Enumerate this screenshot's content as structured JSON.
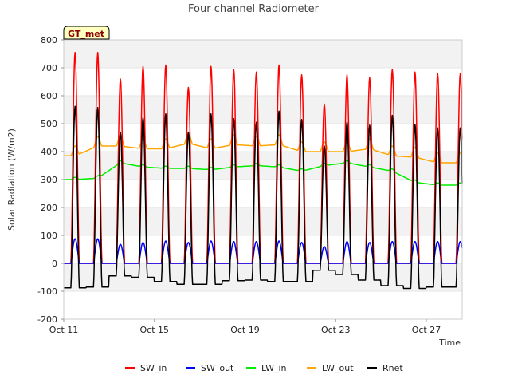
{
  "chart_data": {
    "type": "line",
    "title": "Four channel Radiometer",
    "xlabel": "Time",
    "ylabel": "Solar Radiation (W/m2)",
    "site_label": "GT_met",
    "ylim": [
      -200,
      800
    ],
    "yticks": [
      -200,
      -100,
      0,
      100,
      200,
      300,
      400,
      500,
      600,
      700,
      800
    ],
    "xlim": [
      "2023-10-11",
      "2023-10-28T14:00"
    ],
    "xticks": [
      {
        "date": "2023-10-11",
        "label": "Oct 11"
      },
      {
        "date": "2023-10-15",
        "label": "Oct 15"
      },
      {
        "date": "2023-10-19",
        "label": "Oct 19"
      },
      {
        "date": "2023-10-23",
        "label": "Oct 23"
      },
      {
        "date": "2023-10-27",
        "label": "Oct 27"
      }
    ],
    "grid": "horizontal bands",
    "legend_position": "bottom",
    "series": [
      {
        "name": "SW_in",
        "color": "#ff0000"
      },
      {
        "name": "SW_out",
        "color": "#0000ff"
      },
      {
        "name": "LW_in",
        "color": "#00ee00"
      },
      {
        "name": "LW_out",
        "color": "#ffa500"
      },
      {
        "name": "Rnet",
        "color": "#000000"
      }
    ],
    "daily": [
      {
        "date": "2023-10-11",
        "sw_in_peak": 755,
        "sw_out_peak": 88,
        "lw_in": 300,
        "lw_out": 385,
        "rnet_peak": 562,
        "rnet_night": -88
      },
      {
        "date": "2023-10-12",
        "sw_in_peak": 755,
        "sw_out_peak": 88,
        "lw_in": 305,
        "lw_out": 420,
        "rnet_peak": 558,
        "rnet_night": -85
      },
      {
        "date": "2023-10-13",
        "sw_in_peak": 660,
        "sw_out_peak": 68,
        "lw_in": 360,
        "lw_out": 420,
        "rnet_peak": 470,
        "rnet_night": -45
      },
      {
        "date": "2023-10-14",
        "sw_in_peak": 705,
        "sw_out_peak": 75,
        "lw_in": 345,
        "lw_out": 410,
        "rnet_peak": 520,
        "rnet_night": -50
      },
      {
        "date": "2023-10-15",
        "sw_in_peak": 710,
        "sw_out_peak": 80,
        "lw_in": 340,
        "lw_out": 410,
        "rnet_peak": 535,
        "rnet_night": -65
      },
      {
        "date": "2023-10-16",
        "sw_in_peak": 630,
        "sw_out_peak": 75,
        "lw_in": 340,
        "lw_out": 430,
        "rnet_peak": 470,
        "rnet_night": -75
      },
      {
        "date": "2023-10-17",
        "sw_in_peak": 705,
        "sw_out_peak": 80,
        "lw_in": 335,
        "lw_out": 410,
        "rnet_peak": 535,
        "rnet_night": -75
      },
      {
        "date": "2023-10-18",
        "sw_in_peak": 695,
        "sw_out_peak": 78,
        "lw_in": 345,
        "lw_out": 425,
        "rnet_peak": 518,
        "rnet_night": -62
      },
      {
        "date": "2023-10-19",
        "sw_in_peak": 685,
        "sw_out_peak": 78,
        "lw_in": 350,
        "lw_out": 420,
        "rnet_peak": 505,
        "rnet_night": -60
      },
      {
        "date": "2023-10-20",
        "sw_in_peak": 710,
        "sw_out_peak": 80,
        "lw_in": 345,
        "lw_out": 425,
        "rnet_peak": 545,
        "rnet_night": -65
      },
      {
        "date": "2023-10-21",
        "sw_in_peak": 675,
        "sw_out_peak": 75,
        "lw_in": 330,
        "lw_out": 400,
        "rnet_peak": 515,
        "rnet_night": -65
      },
      {
        "date": "2023-10-22",
        "sw_in_peak": 570,
        "sw_out_peak": 60,
        "lw_in": 350,
        "lw_out": 400,
        "rnet_peak": 420,
        "rnet_night": -25
      },
      {
        "date": "2023-10-23",
        "sw_in_peak": 675,
        "sw_out_peak": 78,
        "lw_in": 360,
        "lw_out": 400,
        "rnet_peak": 505,
        "rnet_night": -40
      },
      {
        "date": "2023-10-24",
        "sw_in_peak": 665,
        "sw_out_peak": 75,
        "lw_in": 345,
        "lw_out": 410,
        "rnet_peak": 495,
        "rnet_night": -60
      },
      {
        "date": "2023-10-25",
        "sw_in_peak": 695,
        "sw_out_peak": 78,
        "lw_in": 330,
        "lw_out": 385,
        "rnet_peak": 530,
        "rnet_night": -80
      },
      {
        "date": "2023-10-26",
        "sw_in_peak": 685,
        "sw_out_peak": 78,
        "lw_in": 290,
        "lw_out": 380,
        "rnet_peak": 498,
        "rnet_night": -90
      },
      {
        "date": "2023-10-27",
        "sw_in_peak": 680,
        "sw_out_peak": 78,
        "lw_in": 280,
        "lw_out": 360,
        "rnet_peak": 485,
        "rnet_night": -85
      }
    ]
  }
}
